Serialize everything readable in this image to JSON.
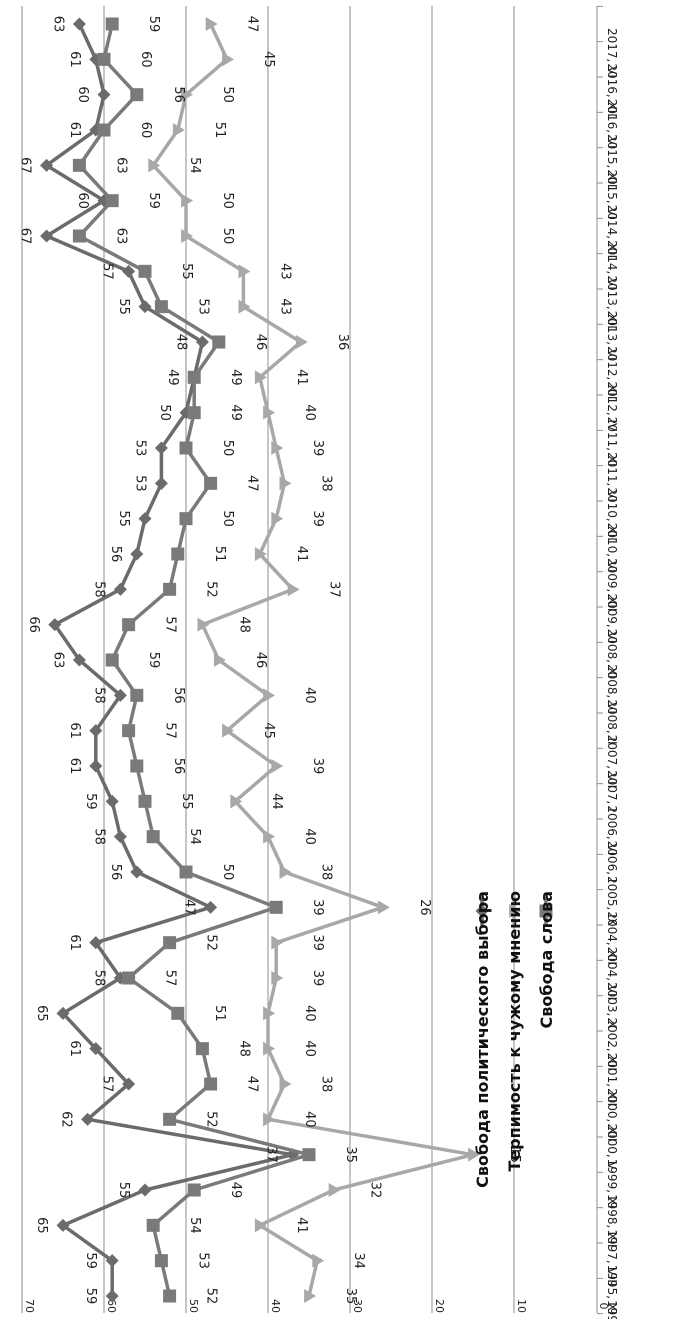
{
  "chart_data": {
    "type": "line",
    "orientation": "rotated-90-clockwise",
    "title": "",
    "xlabel": "",
    "ylabel": "",
    "ylim": [
      0,
      70
    ],
    "y_ticks": [
      0,
      10,
      20,
      30,
      40,
      50,
      60,
      70
    ],
    "grid": true,
    "legend_position": "center",
    "categories": [
      "1995, I",
      "1995, XI",
      "1997, VIII",
      "1998, XII",
      "1999, XI",
      "2000, V",
      "2000, XII",
      "2001, XII",
      "2002, XII",
      "2003, X",
      "2004, VII",
      "2004, XII",
      "2005, IX",
      "2006, I",
      "2006, VI",
      "2007, I",
      "2007, VII",
      "2008, II",
      "2008, VI",
      "2008, XI",
      "2009, VI",
      "2009, XII",
      "2010, VI",
      "2010, XII",
      "2011, VI",
      "2011, XI",
      "2012, IV",
      "2012, XII",
      "2013, VI",
      "2013, XII",
      "2014, VI",
      "2014, XII",
      "2015, VI",
      "2015, XII",
      "2016, VI",
      "2016, XII",
      "2017, VI"
    ],
    "series": [
      {
        "name": "Свобода политического выбора",
        "color": "#6b6b6b",
        "marker": "diamond",
        "values": [
          59,
          59,
          65,
          55,
          37,
          62,
          57,
          61,
          65,
          58,
          61,
          47,
          56,
          58,
          59,
          61,
          61,
          58,
          63,
          66,
          58,
          56,
          55,
          53,
          53,
          50,
          49,
          48,
          55,
          57,
          67,
          60,
          67,
          61,
          60,
          61,
          63
        ]
      },
      {
        "name": "Терпимость к чужому мнению",
        "color": "#a8a8a8",
        "marker": "triangle",
        "values": [
          35,
          34,
          41,
          32,
          15,
          40,
          38,
          40,
          40,
          39,
          39,
          26,
          38,
          40,
          44,
          39,
          45,
          40,
          46,
          48,
          37,
          41,
          39,
          38,
          39,
          40,
          41,
          36,
          43,
          43,
          50,
          50,
          54,
          51,
          50,
          45,
          47
        ]
      },
      {
        "name": "Свобода слова",
        "color": "#7a7a7a",
        "marker": "square",
        "values": [
          52,
          53,
          54,
          49,
          35,
          52,
          47,
          48,
          51,
          57,
          52,
          39,
          50,
          54,
          55,
          56,
          57,
          56,
          59,
          57,
          52,
          51,
          50,
          47,
          50,
          49,
          49,
          46,
          53,
          55,
          63,
          59,
          63,
          60,
          56,
          60,
          59
        ]
      }
    ]
  }
}
